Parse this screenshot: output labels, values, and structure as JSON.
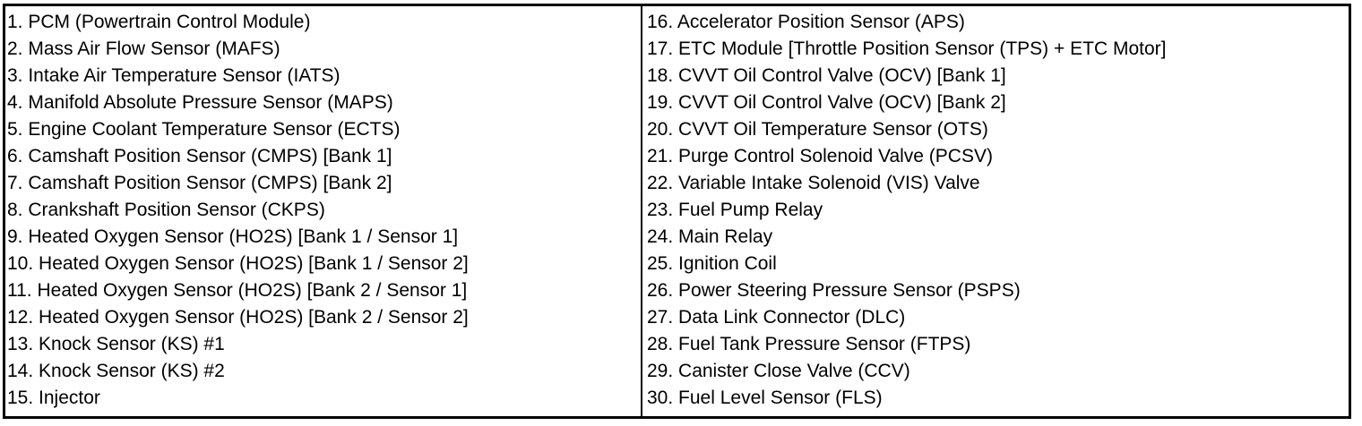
{
  "left_column": [
    "1. PCM (Powertrain Control Module)",
    "2. Mass Air Flow Sensor (MAFS)",
    "3. Intake Air Temperature Sensor (IATS)",
    "4. Manifold Absolute Pressure Sensor (MAPS)",
    "5. Engine Coolant Temperature Sensor (ECTS)",
    "6. Camshaft Position Sensor (CMPS) [Bank 1]",
    "7. Camshaft Position Sensor (CMPS) [Bank 2]",
    "8. Crankshaft Position Sensor (CKPS)",
    "9. Heated Oxygen Sensor (HO2S) [Bank 1 / Sensor 1]",
    "10. Heated Oxygen Sensor (HO2S) [Bank 1 / Sensor 2]",
    "11. Heated Oxygen Sensor (HO2S) [Bank 2 / Sensor 1]",
    "12. Heated Oxygen Sensor (HO2S) [Bank 2 / Sensor 2]",
    "13. Knock Sensor (KS) #1",
    "14. Knock Sensor (KS) #2",
    "15. Injector"
  ],
  "right_column": [
    "16. Accelerator Position Sensor (APS)",
    "17. ETC Module [Throttle Position Sensor (TPS) + ETC Motor]",
    "18. CVVT Oil Control Valve (OCV) [Bank 1]",
    "19. CVVT Oil Control Valve (OCV) [Bank 2]",
    "20. CVVT Oil Temperature Sensor (OTS)",
    "21. Purge Control Solenoid Valve (PCSV)",
    "22. Variable Intake Solenoid (VIS) Valve",
    "23. Fuel Pump Relay",
    "24. Main Relay",
    "25. Ignition Coil",
    "26. Power Steering Pressure Sensor (PSPS)",
    "27. Data Link Connector (DLC)",
    "28. Fuel Tank Pressure Sensor (FTPS)",
    "29. Canister Close Valve (CCV)",
    "30. Fuel Level Sensor (FLS)"
  ]
}
